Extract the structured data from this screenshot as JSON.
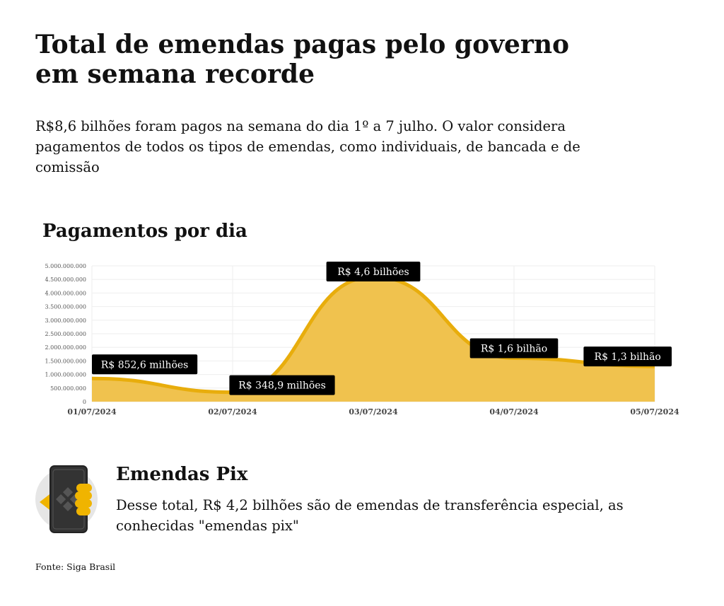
{
  "header": {
    "title": "Total de emendas pagas pelo governo em semana recorde",
    "subtitle": "R$8,6 bilhões foram pagos na semana do dia 1º a 7 julho. O valor considera pagamentos de todos os tipos de emendas, como individuais, de bancada e de comissão"
  },
  "chart_data": {
    "type": "area",
    "title": "Pagamentos por dia",
    "categories": [
      "01/07/2024",
      "02/07/2024",
      "03/07/2024",
      "04/07/2024",
      "05/07/2024"
    ],
    "values": [
      852600000,
      348900000,
      4600000000,
      1600000000,
      1300000000
    ],
    "data_labels": [
      "R$ 852,6 milhões",
      "R$ 348,9 milhões",
      "R$ 4,6 bilhões",
      "R$ 1,6 bilhão",
      "R$ 1,3 bilhão"
    ],
    "yticks": [
      "0",
      "500.000.000",
      "1.000.000.000",
      "1.500.000.000",
      "2.000.000.000",
      "2.500.000.000",
      "3.000.000.000",
      "3.500.000.000",
      "4.000.000.000",
      "4.500.000.000",
      "5.000.000.000"
    ],
    "ylim": [
      0,
      5000000000
    ],
    "grid": true,
    "line_color": "#e8ad0c",
    "fill_color": "#f0c24e"
  },
  "pix": {
    "heading": "Emendas Pix",
    "text": "Desse total, R$ 4,2 bilhões são de emendas de transferência especial, as conhecidas \"emendas pix\"",
    "icon": "phone-pix-icon"
  },
  "footer": {
    "source": "Fonte: Siga Brasil"
  }
}
